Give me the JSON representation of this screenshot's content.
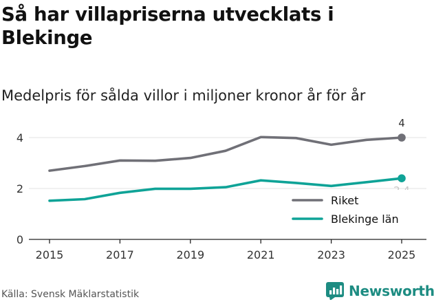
{
  "chart_data": {
    "type": "line",
    "title": "Så har villapriserna utvecklats i Blekinge",
    "subtitle": "Medelpris för sålda villor i miljoner kronor år för år",
    "xlabel": "",
    "ylabel": "",
    "x": [
      2015,
      2016,
      2017,
      2018,
      2019,
      2020,
      2021,
      2022,
      2023,
      2024,
      2025
    ],
    "series": [
      {
        "name": "Riket",
        "color": "#707077",
        "values": [
          2.7,
          2.88,
          3.1,
          3.09,
          3.2,
          3.48,
          4.02,
          3.98,
          3.72,
          3.91,
          4.0
        ],
        "end_label": "4"
      },
      {
        "name": "Blekinge län",
        "color": "#0fa397",
        "values": [
          1.52,
          1.58,
          1.83,
          1.99,
          1.99,
          2.05,
          2.32,
          2.22,
          2.1,
          2.25,
          2.4
        ],
        "end_label": "2,4"
      }
    ],
    "xticks": [
      "2015",
      "2017",
      "2019",
      "2021",
      "2023",
      "2025"
    ],
    "yticks": [
      "0",
      "2",
      "4"
    ],
    "ylim": [
      0,
      4.2
    ],
    "xlim": [
      2015,
      2025
    ],
    "legend_position": "bottom-right"
  },
  "footer": {
    "source": "Källa: Svensk Mäklarstatistik",
    "brand": "Newsworthy"
  },
  "colors": {
    "brand": "#1d8c82",
    "grid": "#e3e3e3",
    "axis": "#222222"
  }
}
